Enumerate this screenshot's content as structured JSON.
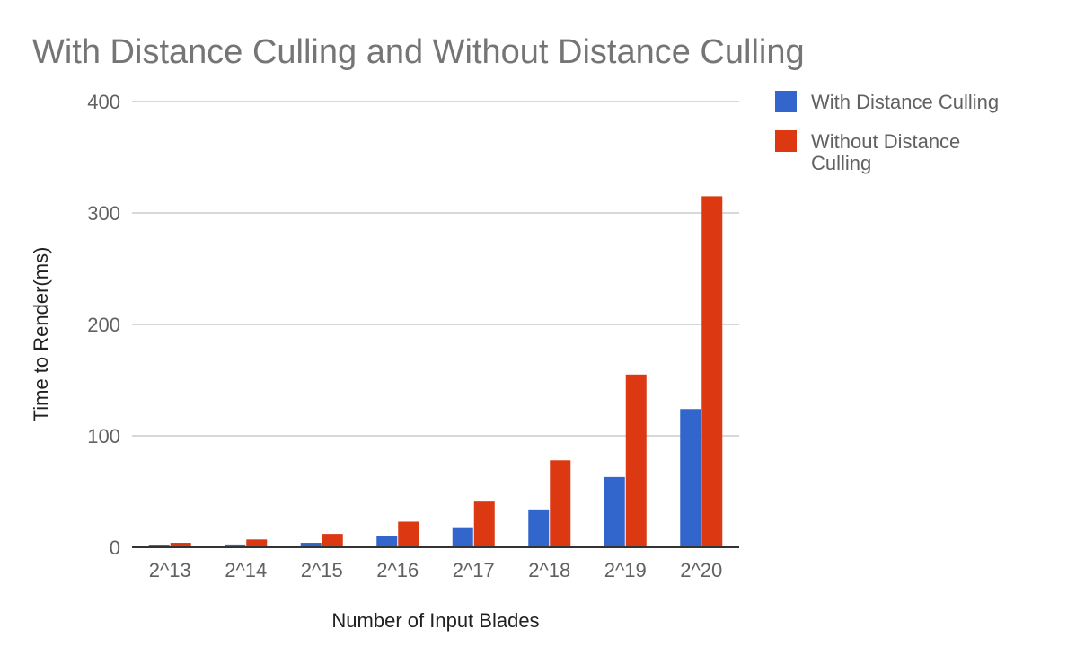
{
  "chart_data": {
    "type": "bar",
    "title": "With Distance Culling and Without Distance Culling",
    "xlabel": "Number of Input Blades",
    "ylabel": "Time to Render(ms)",
    "categories": [
      "2^13",
      "2^14",
      "2^15",
      "2^16",
      "2^17",
      "2^18",
      "2^19",
      "2^20"
    ],
    "series": [
      {
        "name": "With Distance Culling",
        "color": "#3366cc",
        "values": [
          2,
          2.5,
          4,
          10,
          18,
          34,
          63,
          124
        ]
      },
      {
        "name": "Without Distance Culling",
        "color": "#dc3912",
        "values": [
          4,
          7,
          12,
          23,
          41,
          78,
          155,
          315
        ]
      }
    ],
    "ylim": [
      0,
      400
    ],
    "yticks": [
      0,
      100,
      200,
      300,
      400
    ],
    "grid": true,
    "legend_position": "right"
  }
}
